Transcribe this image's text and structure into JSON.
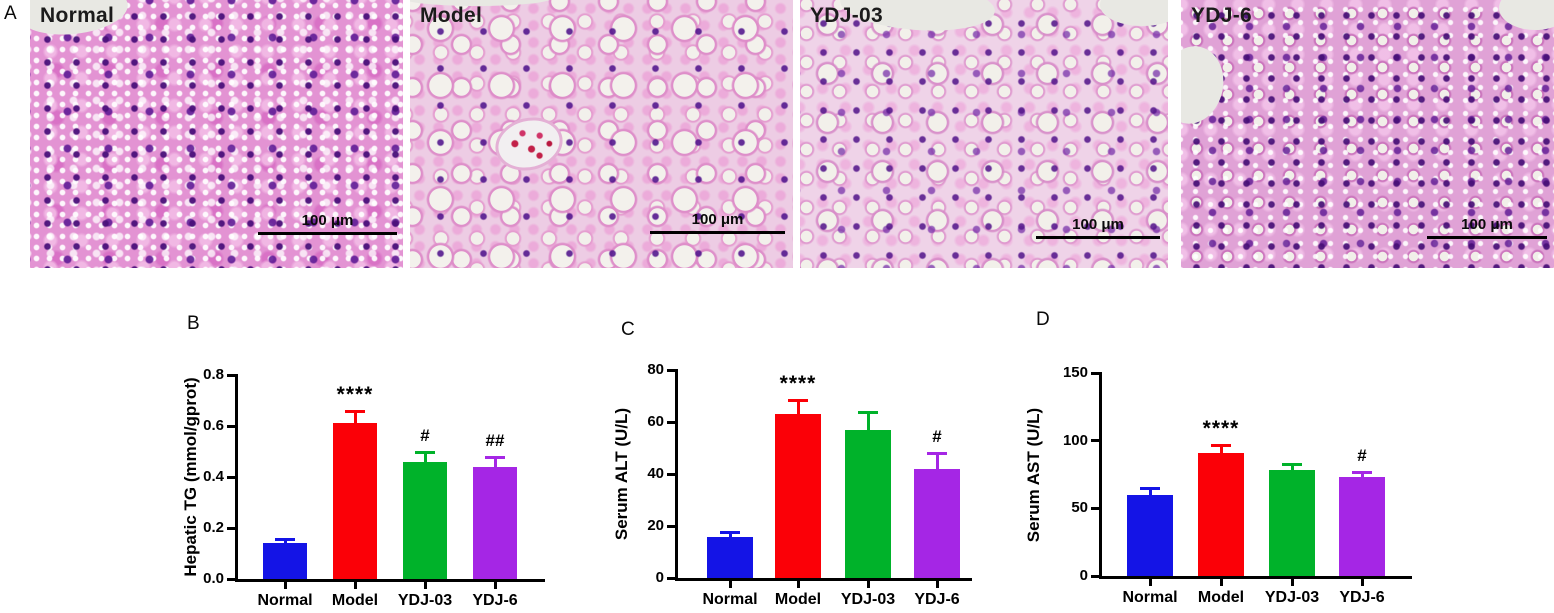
{
  "panel_a": {
    "label": "A",
    "images": [
      {
        "label": "Normal",
        "scale_bar_text": "100 μm"
      },
      {
        "label": "Model",
        "scale_bar_text": "100 μm"
      },
      {
        "label": "YDJ-03",
        "scale_bar_text": "100 μm"
      },
      {
        "label": "YDJ-6",
        "scale_bar_text": "100 μm"
      }
    ],
    "stain_colors": {
      "cytoplasm_pink": "#e393d3",
      "nuclei_purple": "#5a1490",
      "vacuole_white": "#f3f1ec"
    }
  },
  "chart_data": [
    {
      "type": "bar",
      "panel": "B",
      "title": "",
      "xlabel": "",
      "ylabel": "Hepatic TG (mmol/gprot)",
      "categories": [
        "Normal",
        "Model",
        "YDJ-03",
        "YDJ-6"
      ],
      "values": [
        0.14,
        0.61,
        0.46,
        0.44
      ],
      "errors": [
        0.015,
        0.05,
        0.04,
        0.04
      ],
      "annotations": [
        "",
        "****",
        "#",
        "##"
      ],
      "bar_colors": [
        "#1414e6",
        "#fb0007",
        "#00b22a",
        "#a526e5"
      ],
      "ylim": [
        0,
        0.8
      ],
      "ytick_labels": [
        "0.0",
        "0.2",
        "0.4",
        "0.6",
        "0.8"
      ],
      "grid": false,
      "legend": "none"
    },
    {
      "type": "bar",
      "panel": "C",
      "title": "",
      "xlabel": "",
      "ylabel": "Serum ALT (U/L)",
      "categories": [
        "Normal",
        "Model",
        "YDJ-03",
        "YDJ-6"
      ],
      "values": [
        15.8,
        63,
        57,
        42
      ],
      "errors": [
        2,
        5.5,
        7,
        6
      ],
      "annotations": [
        "",
        "****",
        "",
        "#"
      ],
      "bar_colors": [
        "#1414e6",
        "#fb0007",
        "#00b22a",
        "#a526e5"
      ],
      "ylim": [
        0,
        80
      ],
      "ytick_labels": [
        "0",
        "20",
        "40",
        "60",
        "80"
      ],
      "grid": false,
      "legend": "none"
    },
    {
      "type": "bar",
      "panel": "D",
      "title": "",
      "xlabel": "",
      "ylabel": "Serum AST (U/L)",
      "categories": [
        "Normal",
        "Model",
        "YDJ-03",
        "YDJ-6"
      ],
      "values": [
        60,
        91,
        78,
        73
      ],
      "errors": [
        5,
        6,
        5,
        4
      ],
      "annotations": [
        "",
        "****",
        "",
        "#"
      ],
      "bar_colors": [
        "#1414e6",
        "#fb0007",
        "#00b22a",
        "#a526e5"
      ],
      "ylim": [
        0,
        150
      ],
      "ytick_labels": [
        "0",
        "50",
        "100",
        "150"
      ],
      "grid": false,
      "legend": "none"
    }
  ]
}
